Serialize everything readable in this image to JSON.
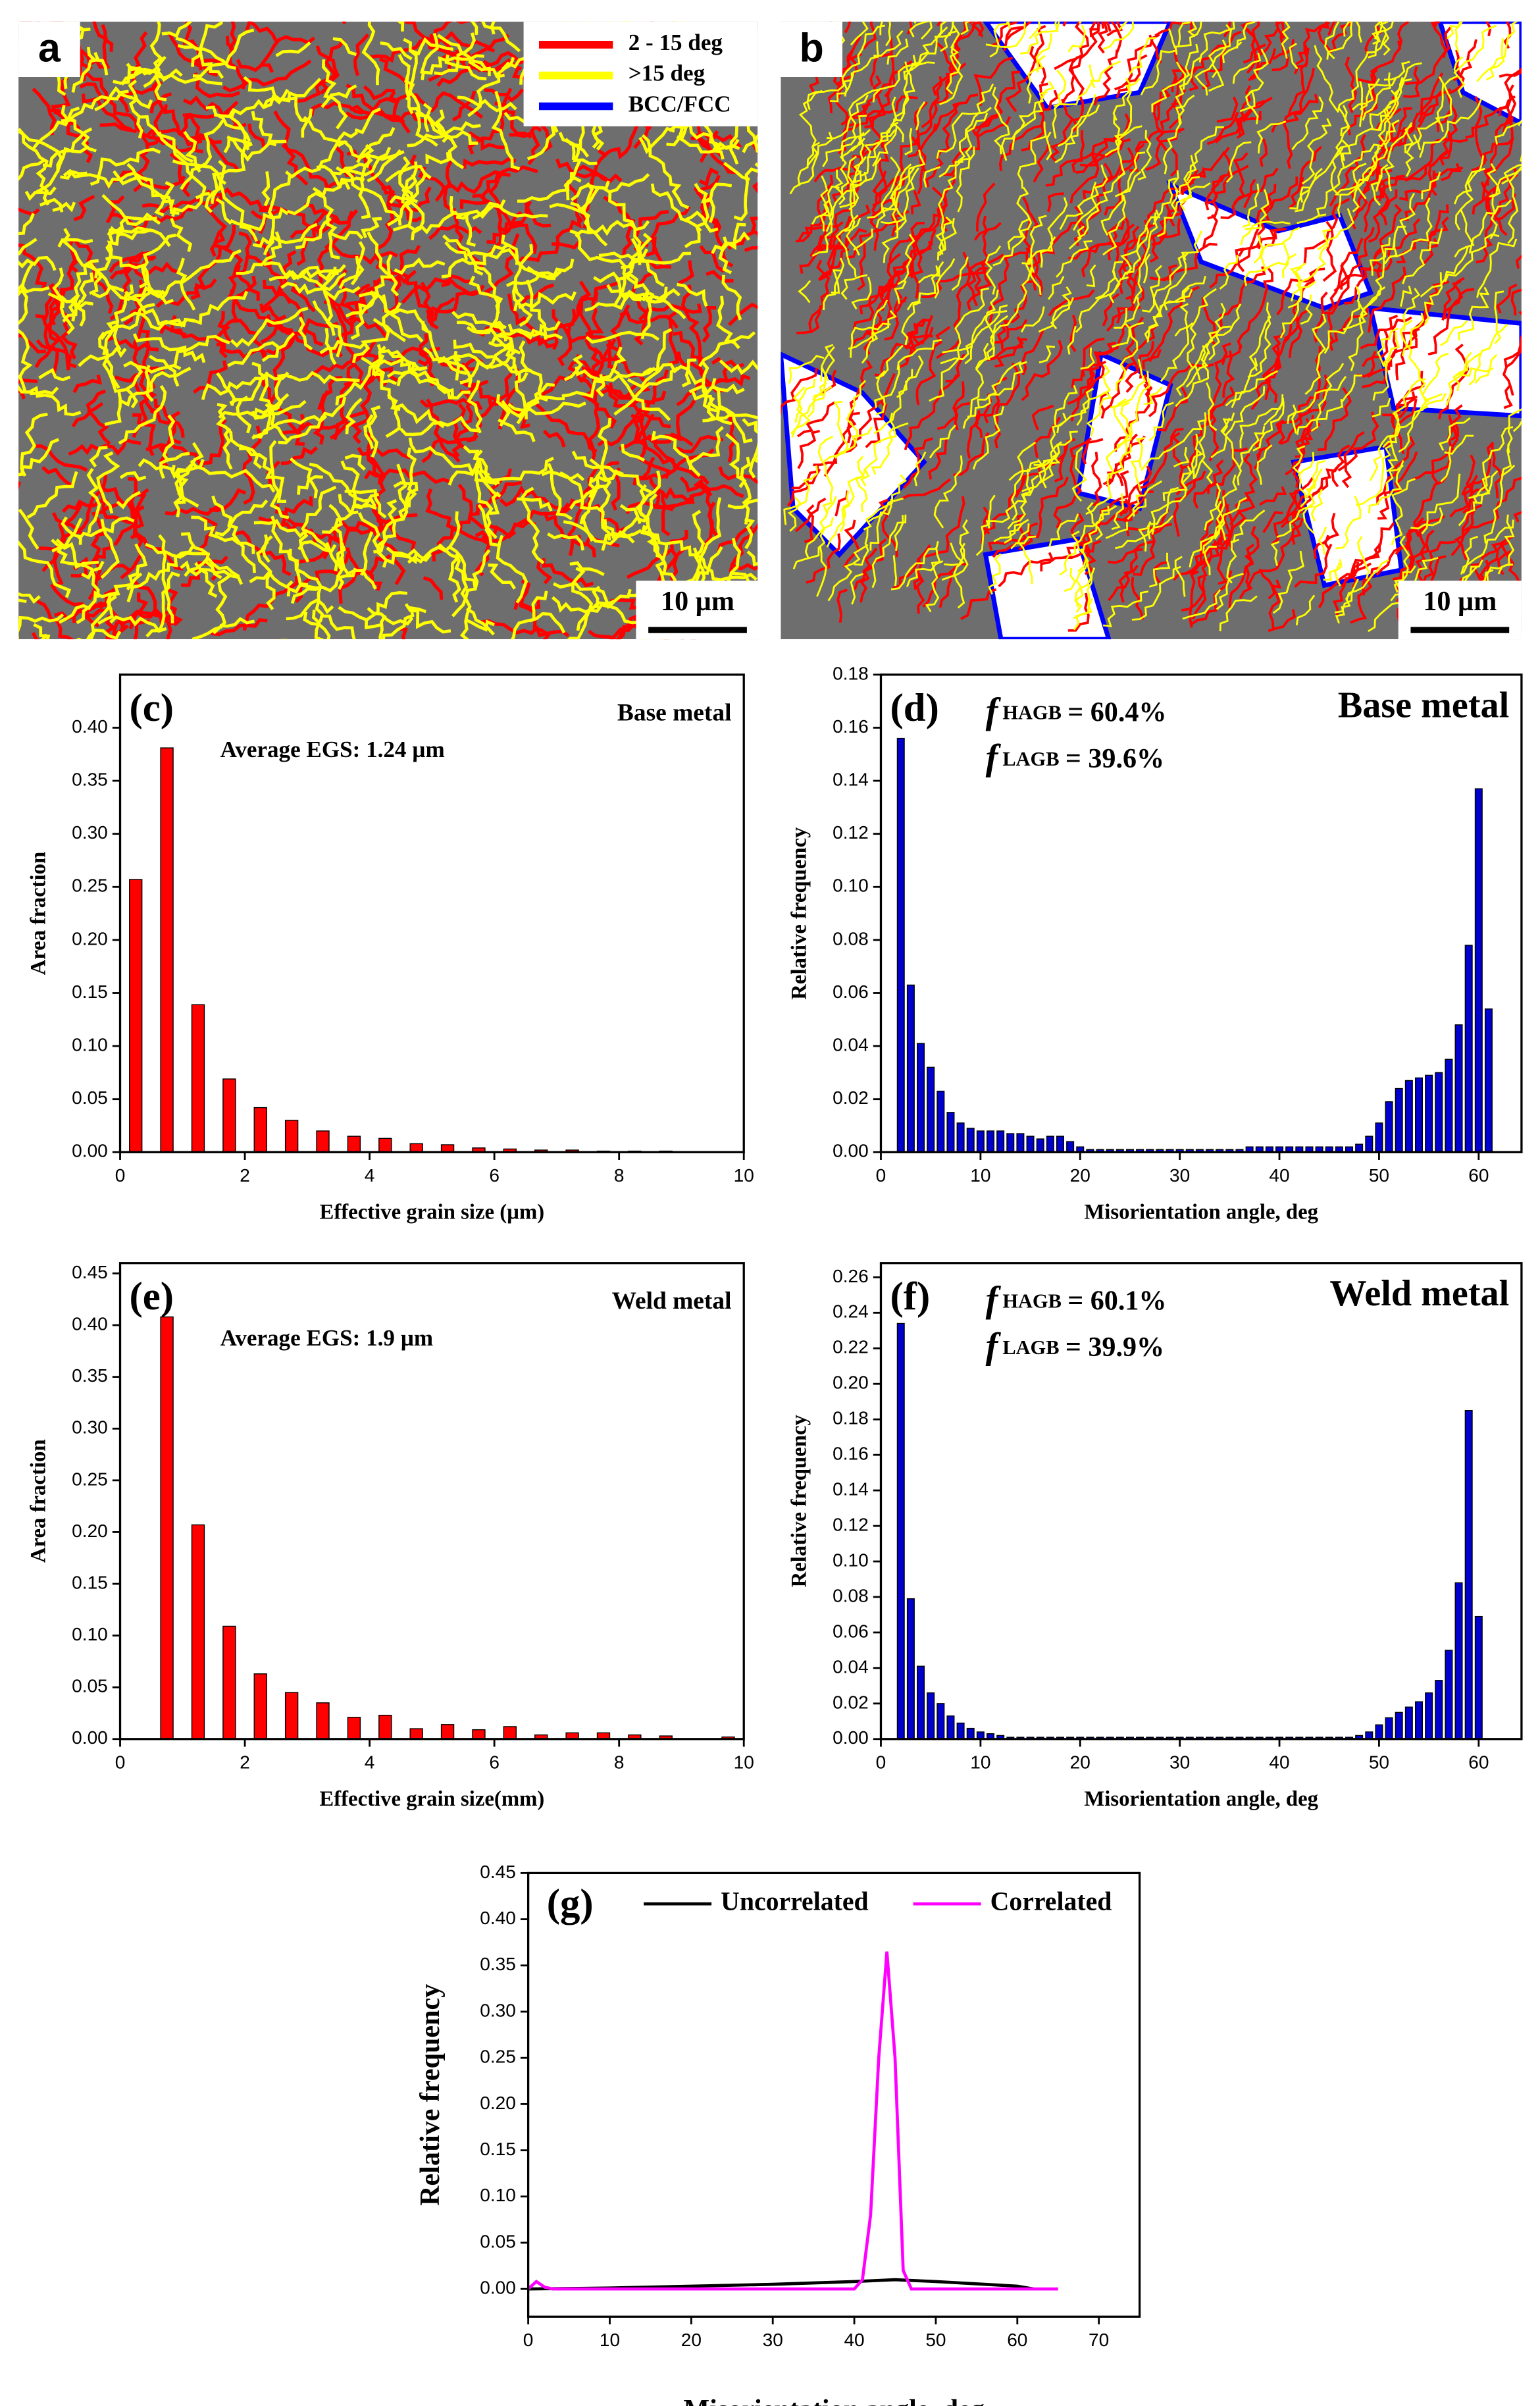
{
  "micrographs": [
    {
      "label": "a",
      "legend": [
        "2 - 15 deg",
        ">15  deg",
        "BCC/FCC"
      ],
      "legend_colors": [
        "#ff0000",
        "#ffff00",
        "#0000ff"
      ],
      "scale_bar": "10 µm"
    },
    {
      "label": "b",
      "scale_bar": "10 µm"
    }
  ],
  "chart_data": [
    {
      "type": "bar",
      "panel": "(c)",
      "label": "Base metal",
      "annotation": "Average EGS: 1.24 µm",
      "xlabel": "Effective grain size (µm)",
      "ylabel": "Area fraction",
      "color": "#ff0000",
      "x": [
        0.25,
        0.75,
        1.25,
        1.75,
        2.25,
        2.75,
        3.25,
        3.75,
        4.25,
        4.75,
        5.25,
        5.75,
        6.25,
        6.75,
        7.25,
        7.75,
        8.25,
        8.75
      ],
      "values": [
        0.257,
        0.381,
        0.139,
        0.069,
        0.042,
        0.03,
        0.02,
        0.015,
        0.013,
        0.008,
        0.007,
        0.004,
        0.003,
        0.002,
        0.002,
        0.001,
        0.001,
        0.001
      ],
      "xlim": [
        0,
        10
      ],
      "xticks": [
        0,
        2,
        4,
        6,
        8,
        10
      ],
      "ylim": [
        0,
        0.45
      ],
      "yticks": [
        {
          "value": 0,
          "label": "0.00"
        },
        {
          "value": 0.05,
          "label": "0.05"
        },
        {
          "value": 0.1,
          "label": "0.10"
        },
        {
          "value": 0.15,
          "label": "0.15"
        },
        {
          "value": 0.2,
          "label": "0.20"
        },
        {
          "value": 0.25,
          "label": "0.25"
        },
        {
          "value": 0.3,
          "label": "0.30"
        },
        {
          "value": 0.35,
          "label": "0.35"
        },
        {
          "value": 0.4,
          "label": "0.40"
        }
      ]
    },
    {
      "type": "bar",
      "panel": "(d)",
      "label": "Base metal",
      "fractions": [
        {
          "symbol": "f",
          "subscript": "HAGB",
          "text": "= 60.4%"
        },
        {
          "symbol": "f",
          "subscript": "LAGB",
          "text": "= 39.6%"
        }
      ],
      "xlabel": "Misorientation angle, deg",
      "ylabel": "Relative frequency",
      "color": "#0000cc",
      "x": [
        2,
        3,
        4,
        5,
        6,
        7,
        8,
        9,
        10,
        11,
        12,
        13,
        14,
        15,
        16,
        17,
        18,
        19,
        20,
        21,
        22,
        23,
        24,
        25,
        26,
        27,
        28,
        29,
        30,
        31,
        32,
        33,
        34,
        35,
        36,
        37,
        38,
        39,
        40,
        41,
        42,
        43,
        44,
        45,
        46,
        47,
        48,
        49,
        50,
        51,
        52,
        53,
        54,
        55,
        56,
        57,
        58,
        59,
        60,
        61
      ],
      "values": [
        0.156,
        0.063,
        0.041,
        0.032,
        0.023,
        0.015,
        0.011,
        0.009,
        0.008,
        0.008,
        0.008,
        0.007,
        0.007,
        0.006,
        0.005,
        0.006,
        0.006,
        0.004,
        0.002,
        0.001,
        0.001,
        0.001,
        0.001,
        0.001,
        0.001,
        0.001,
        0.001,
        0.001,
        0.001,
        0.001,
        0.001,
        0.001,
        0.001,
        0.001,
        0.001,
        0.002,
        0.002,
        0.002,
        0.002,
        0.002,
        0.002,
        0.002,
        0.002,
        0.002,
        0.002,
        0.002,
        0.003,
        0.006,
        0.011,
        0.019,
        0.024,
        0.027,
        0.028,
        0.029,
        0.03,
        0.035,
        0.048,
        0.078,
        0.137,
        0.054
      ],
      "xlim": [
        0,
        64.3
      ],
      "xticks": [
        0,
        10,
        20,
        30,
        40,
        50,
        60
      ],
      "ylim": [
        0,
        0.18
      ],
      "yticks": [
        {
          "value": 0,
          "label": "0.00"
        },
        {
          "value": 0.02,
          "label": "0.02"
        },
        {
          "value": 0.04,
          "label": "0.04"
        },
        {
          "value": 0.06,
          "label": "0.06"
        },
        {
          "value": 0.08,
          "label": "0.08"
        },
        {
          "value": 0.1,
          "label": "0.10"
        },
        {
          "value": 0.12,
          "label": "0.12"
        },
        {
          "value": 0.14,
          "label": "0.14"
        },
        {
          "value": 0.16,
          "label": "0.16"
        },
        {
          "value": 0.18,
          "label": "0.18"
        }
      ]
    },
    {
      "type": "bar",
      "panel": "(e)",
      "label": "Weld metal",
      "annotation": "Average EGS: 1.9 µm",
      "xlabel": "Effective grain size(mm)",
      "ylabel": "Area fraction",
      "color": "#ff0000",
      "x": [
        0.75,
        1.25,
        1.75,
        2.25,
        2.75,
        3.25,
        3.75,
        4.25,
        4.75,
        5.25,
        5.75,
        6.25,
        6.75,
        7.25,
        7.75,
        8.25,
        8.75,
        9.75
      ],
      "values": [
        0.408,
        0.207,
        0.109,
        0.063,
        0.045,
        0.035,
        0.021,
        0.023,
        0.01,
        0.014,
        0.009,
        0.012,
        0.004,
        0.006,
        0.006,
        0.004,
        0.003,
        0.002
      ],
      "xlim": [
        0,
        10
      ],
      "xticks": [
        0,
        2,
        4,
        6,
        8,
        10
      ],
      "ylim": [
        0,
        0.46
      ],
      "yticks": [
        {
          "value": 0,
          "label": "0.00"
        },
        {
          "value": 0.05,
          "label": "0.05"
        },
        {
          "value": 0.1,
          "label": "0.10"
        },
        {
          "value": 0.15,
          "label": "0.15"
        },
        {
          "value": 0.2,
          "label": "0.20"
        },
        {
          "value": 0.25,
          "label": "0.25"
        },
        {
          "value": 0.3,
          "label": "0.30"
        },
        {
          "value": 0.35,
          "label": "0.35"
        },
        {
          "value": 0.4,
          "label": "0.40"
        },
        {
          "value": 0.45,
          "label": "0.45"
        }
      ]
    },
    {
      "type": "bar",
      "panel": "(f)",
      "label": "Weld metal",
      "fractions": [
        {
          "symbol": "f",
          "subscript": "HAGB",
          "text": "= 60.1%"
        },
        {
          "symbol": "f",
          "subscript": "LAGB",
          "text": "= 39.9%"
        }
      ],
      "xlabel": "Misorientation angle, deg",
      "ylabel": "Relative frequency",
      "color": "#0000cc",
      "x": [
        2,
        3,
        4,
        5,
        6,
        7,
        8,
        9,
        10,
        11,
        12,
        13,
        14,
        15,
        16,
        17,
        18,
        19,
        20,
        21,
        22,
        23,
        24,
        25,
        26,
        27,
        28,
        29,
        30,
        31,
        32,
        33,
        34,
        35,
        36,
        37,
        38,
        39,
        40,
        41,
        42,
        43,
        44,
        45,
        46,
        47,
        48,
        49,
        50,
        51,
        52,
        53,
        54,
        55,
        56,
        57,
        58,
        59,
        60
      ],
      "values": [
        0.234,
        0.079,
        0.041,
        0.026,
        0.02,
        0.013,
        0.009,
        0.006,
        0.004,
        0.003,
        0.002,
        0.001,
        0.001,
        0.001,
        0.001,
        0.001,
        0.001,
        0.001,
        0.001,
        0.001,
        0.001,
        0.001,
        0.001,
        0.001,
        0.001,
        0.001,
        0.001,
        0.001,
        0.001,
        0.001,
        0.001,
        0.001,
        0.001,
        0.001,
        0.001,
        0.001,
        0.001,
        0.001,
        0.001,
        0.001,
        0.001,
        0.001,
        0.001,
        0.001,
        0.001,
        0.001,
        0.002,
        0.004,
        0.008,
        0.012,
        0.015,
        0.018,
        0.021,
        0.026,
        0.033,
        0.05,
        0.088,
        0.185,
        0.069
      ],
      "xlim": [
        0,
        64.3
      ],
      "xticks": [
        0,
        10,
        20,
        30,
        40,
        50,
        60
      ],
      "ylim": [
        0,
        0.268
      ],
      "yticks": [
        {
          "value": 0,
          "label": "0.00"
        },
        {
          "value": 0.02,
          "label": "0.02"
        },
        {
          "value": 0.04,
          "label": "0.04"
        },
        {
          "value": 0.06,
          "label": "0.06"
        },
        {
          "value": 0.08,
          "label": "0.08"
        },
        {
          "value": 0.1,
          "label": "0.10"
        },
        {
          "value": 0.12,
          "label": "0.12"
        },
        {
          "value": 0.14,
          "label": "0.14"
        },
        {
          "value": 0.16,
          "label": "0.16"
        },
        {
          "value": 0.18,
          "label": "0.18"
        },
        {
          "value": 0.2,
          "label": "0.20"
        },
        {
          "value": 0.22,
          "label": "0.22"
        },
        {
          "value": 0.24,
          "label": "0.24"
        },
        {
          "value": 0.26,
          "label": "0.26"
        }
      ]
    },
    {
      "type": "line",
      "panel": "(g)",
      "xlabel": "Misorientation angle, deg",
      "ylabel": "Relative frequency",
      "series": [
        {
          "name": "Uncorrelated",
          "color": "#000000",
          "x": [
            0,
            10,
            20,
            30,
            40,
            45,
            50,
            60,
            62
          ],
          "values": [
            0,
            0.001,
            0.003,
            0.005,
            0.008,
            0.01,
            0.008,
            0.003,
            0
          ]
        },
        {
          "name": "Correlated",
          "color": "#ff00ff",
          "x": [
            0,
            1,
            2,
            3,
            10,
            20,
            30,
            40,
            41,
            42,
            43,
            44,
            45,
            46,
            47,
            50,
            60,
            65
          ],
          "values": [
            0,
            0.008,
            0.002,
            0,
            0,
            0,
            0,
            0,
            0.01,
            0.08,
            0.25,
            0.365,
            0.25,
            0.02,
            0,
            0,
            0,
            0
          ]
        }
      ],
      "xlim": [
        0,
        75
      ],
      "xticks": [
        0,
        10,
        20,
        30,
        40,
        50,
        60,
        70
      ],
      "ylim": [
        -0.03,
        0.45
      ],
      "yticks": [
        {
          "value": 0,
          "label": "0.00"
        },
        {
          "value": 0.05,
          "label": "0.05"
        },
        {
          "value": 0.1,
          "label": "0.10"
        },
        {
          "value": 0.15,
          "label": "0.15"
        },
        {
          "value": 0.2,
          "label": "0.20"
        },
        {
          "value": 0.25,
          "label": "0.25"
        },
        {
          "value": 0.3,
          "label": "0.30"
        },
        {
          "value": 0.35,
          "label": "0.35"
        },
        {
          "value": 0.4,
          "label": "0.40"
        },
        {
          "value": 0.45,
          "label": "0.45"
        }
      ]
    }
  ]
}
